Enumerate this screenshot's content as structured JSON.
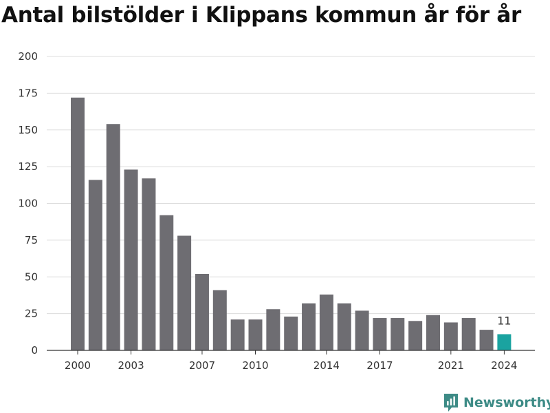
{
  "title": "Antal bilstölder i Klippans kommun år för år",
  "brand": {
    "name": "Newsworthy",
    "color": "#3d8b86",
    "icon": "newsworthy-logo-icon"
  },
  "colors": {
    "bar": "#6e6d72",
    "highlight": "#1aa3a0",
    "grid": "#dcdcdc",
    "axis": "#333333"
  },
  "chart_data": {
    "type": "bar",
    "categories": [
      "2000",
      "2001",
      "2002",
      "2003",
      "2004",
      "2005",
      "2006",
      "2007",
      "2008",
      "2009",
      "2010",
      "2011",
      "2012",
      "2013",
      "2014",
      "2015",
      "2016",
      "2017",
      "2018",
      "2019",
      "2020",
      "2021",
      "2022",
      "2023",
      "2024"
    ],
    "values": [
      172,
      116,
      154,
      123,
      117,
      92,
      78,
      52,
      41,
      21,
      21,
      28,
      23,
      32,
      38,
      32,
      27,
      22,
      22,
      20,
      24,
      19,
      22,
      14,
      11
    ],
    "x_tick_labels": [
      "2000",
      "2003",
      "2007",
      "2010",
      "2014",
      "2017",
      "2021",
      "2024"
    ],
    "y_ticks": [
      0,
      25,
      50,
      75,
      100,
      125,
      150,
      175,
      200
    ],
    "ylim": [
      0,
      200
    ],
    "grid": true,
    "highlight_index": 24,
    "data_labels": [
      {
        "index": 24,
        "text": "11"
      }
    ],
    "xlabel": "",
    "ylabel": ""
  }
}
